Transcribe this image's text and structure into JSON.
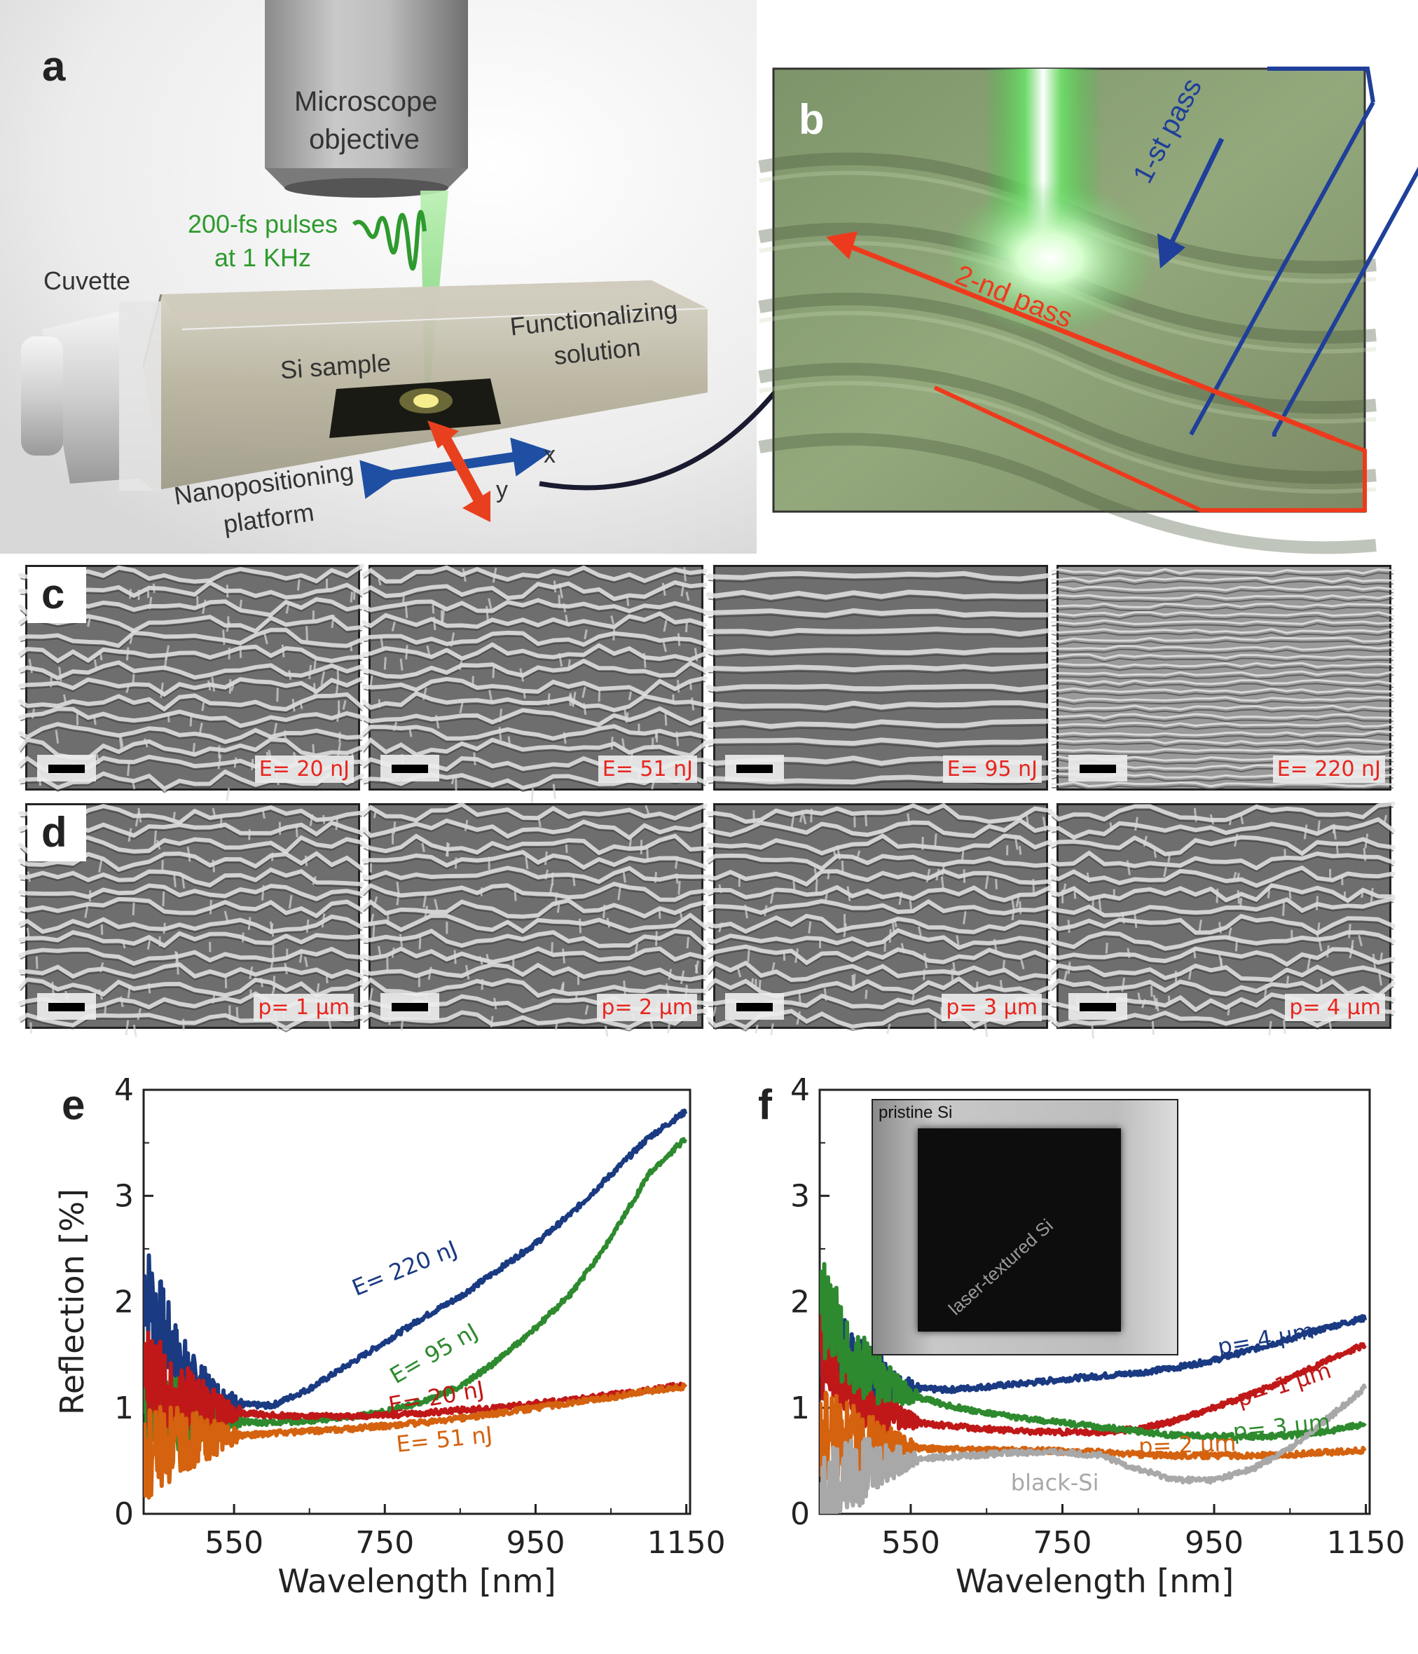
{
  "panel_a": {
    "letter": "a",
    "objective_line1": "Microscope",
    "objective_line2": "objective",
    "pulses_line1": "200-fs pulses",
    "pulses_line2": "at 1 KHz",
    "cuvette": "Cuvette",
    "si_sample": "Si sample",
    "solution_line1": "Functionalizing",
    "solution_line2": "solution",
    "platform_line1": "Nanopositioning",
    "platform_line2": "platform",
    "axis_x": "x",
    "axis_y": "y",
    "colors": {
      "laser": "#2e9a2e",
      "x_arrow": "#1f4fa3",
      "y_arrow": "#e8401e"
    }
  },
  "panel_b": {
    "letter": "b",
    "first_pass": "1-st pass",
    "second_pass": "2-nd pass",
    "colors": {
      "first_pass": "#1f3f9a",
      "second_pass": "#ee3a1c"
    }
  },
  "panel_c": {
    "letter": "c",
    "tiles": [
      {
        "label": "E= 20 nJ",
        "pattern": "mesh"
      },
      {
        "label": "E= 51 nJ",
        "pattern": "mesh"
      },
      {
        "label": "E= 95 nJ",
        "pattern": "stripes"
      },
      {
        "label": "E= 220 nJ",
        "pattern": "fine"
      }
    ]
  },
  "panel_d": {
    "letter": "d",
    "tiles": [
      {
        "label": "p= 1 µm",
        "pattern": "mesh"
      },
      {
        "label": "p= 2 µm",
        "pattern": "mesh"
      },
      {
        "label": "p= 3 µm",
        "pattern": "mesh"
      },
      {
        "label": "p= 4 µm",
        "pattern": "mesh"
      }
    ]
  },
  "chart_data": [
    {
      "panel": "e",
      "type": "line",
      "xlabel": "Wavelength [nm]",
      "ylabel": "Reflection [%]",
      "xlim": [
        430,
        1155
      ],
      "ylim": [
        0,
        4
      ],
      "xticks": [
        550,
        750,
        950,
        1150
      ],
      "yticks": [
        0,
        1,
        2,
        3,
        4
      ],
      "series": [
        {
          "name": "E= 220 nJ",
          "color": "#1a3a82",
          "x": [
            430,
            470,
            500,
            530,
            560,
            600,
            650,
            700,
            750,
            800,
            850,
            900,
            950,
            1000,
            1050,
            1100,
            1150
          ],
          "y": [
            2.2,
            1.5,
            1.2,
            1.1,
            1.03,
            1.02,
            1.18,
            1.4,
            1.62,
            1.85,
            2.05,
            2.3,
            2.55,
            2.85,
            3.2,
            3.55,
            3.8
          ]
        },
        {
          "name": "E= 95 nJ",
          "color": "#2e8a2e",
          "x": [
            430,
            470,
            500,
            530,
            560,
            600,
            650,
            700,
            750,
            800,
            850,
            900,
            950,
            1000,
            1050,
            1100,
            1150
          ],
          "y": [
            1.0,
            0.95,
            0.9,
            0.88,
            0.87,
            0.86,
            0.88,
            0.91,
            0.96,
            1.06,
            1.2,
            1.45,
            1.75,
            2.1,
            2.6,
            3.2,
            3.55
          ]
        },
        {
          "name": "E= 20 nJ",
          "color": "#c01818",
          "x": [
            430,
            470,
            500,
            530,
            560,
            600,
            650,
            700,
            750,
            800,
            850,
            900,
            950,
            1000,
            1050,
            1100,
            1150
          ],
          "y": [
            1.3,
            1.15,
            1.05,
            0.98,
            0.95,
            0.93,
            0.92,
            0.92,
            0.93,
            0.95,
            0.98,
            1.0,
            1.04,
            1.08,
            1.12,
            1.17,
            1.22
          ]
        },
        {
          "name": "E= 51 nJ",
          "color": "#d4620e",
          "x": [
            430,
            470,
            500,
            530,
            560,
            600,
            650,
            700,
            750,
            800,
            850,
            900,
            950,
            1000,
            1050,
            1100,
            1150
          ],
          "y": [
            0.5,
            0.65,
            0.7,
            0.72,
            0.74,
            0.76,
            0.78,
            0.8,
            0.83,
            0.86,
            0.9,
            0.95,
            1.0,
            1.05,
            1.1,
            1.16,
            1.2
          ]
        }
      ]
    },
    {
      "panel": "f",
      "type": "line",
      "xlabel": "Wavelength [nm]",
      "ylabel": "",
      "xlim": [
        430,
        1155
      ],
      "ylim": [
        0,
        4
      ],
      "xticks": [
        550,
        750,
        950,
        1150
      ],
      "yticks": [
        0,
        1,
        2,
        3,
        4
      ],
      "inset": {
        "pristine": "pristine Si",
        "textured": "laser-textured Si"
      },
      "series": [
        {
          "name": "p= 4 µm",
          "color": "#1a3a82",
          "x": [
            430,
            470,
            500,
            530,
            560,
            600,
            650,
            700,
            750,
            800,
            850,
            900,
            950,
            1000,
            1050,
            1100,
            1150
          ],
          "y": [
            1.7,
            1.4,
            1.3,
            1.22,
            1.18,
            1.17,
            1.2,
            1.23,
            1.27,
            1.3,
            1.33,
            1.38,
            1.45,
            1.55,
            1.65,
            1.76,
            1.85
          ]
        },
        {
          "name": "p= 1 µm",
          "color": "#c01818",
          "x": [
            430,
            470,
            500,
            530,
            560,
            600,
            650,
            700,
            750,
            800,
            850,
            900,
            950,
            1000,
            1050,
            1100,
            1150
          ],
          "y": [
            1.6,
            1.2,
            1.0,
            0.9,
            0.86,
            0.83,
            0.8,
            0.78,
            0.77,
            0.77,
            0.8,
            0.88,
            1.0,
            1.13,
            1.28,
            1.45,
            1.6
          ]
        },
        {
          "name": "p= 3 µm",
          "color": "#2e8a2e",
          "x": [
            430,
            470,
            500,
            530,
            560,
            600,
            650,
            700,
            750,
            800,
            850,
            900,
            950,
            1000,
            1050,
            1100,
            1150
          ],
          "y": [
            2.0,
            1.5,
            1.3,
            1.18,
            1.1,
            1.02,
            0.95,
            0.9,
            0.86,
            0.82,
            0.78,
            0.74,
            0.73,
            0.73,
            0.74,
            0.78,
            0.85
          ]
        },
        {
          "name": "p= 2 µm",
          "color": "#d4620e",
          "x": [
            430,
            470,
            500,
            530,
            560,
            600,
            650,
            700,
            750,
            800,
            850,
            900,
            950,
            1000,
            1050,
            1100,
            1150
          ],
          "y": [
            0.7,
            0.68,
            0.66,
            0.64,
            0.62,
            0.61,
            0.6,
            0.6,
            0.59,
            0.58,
            0.56,
            0.55,
            0.55,
            0.55,
            0.56,
            0.58,
            0.6
          ]
        },
        {
          "name": "black-Si",
          "color": "#a8a8a8",
          "x": [
            430,
            470,
            500,
            530,
            560,
            600,
            650,
            700,
            750,
            800,
            850,
            900,
            950,
            1000,
            1050,
            1100,
            1150
          ],
          "y": [
            0.2,
            0.35,
            0.45,
            0.5,
            0.52,
            0.54,
            0.56,
            0.58,
            0.58,
            0.55,
            0.42,
            0.32,
            0.32,
            0.42,
            0.62,
            0.9,
            1.2
          ]
        }
      ]
    }
  ]
}
